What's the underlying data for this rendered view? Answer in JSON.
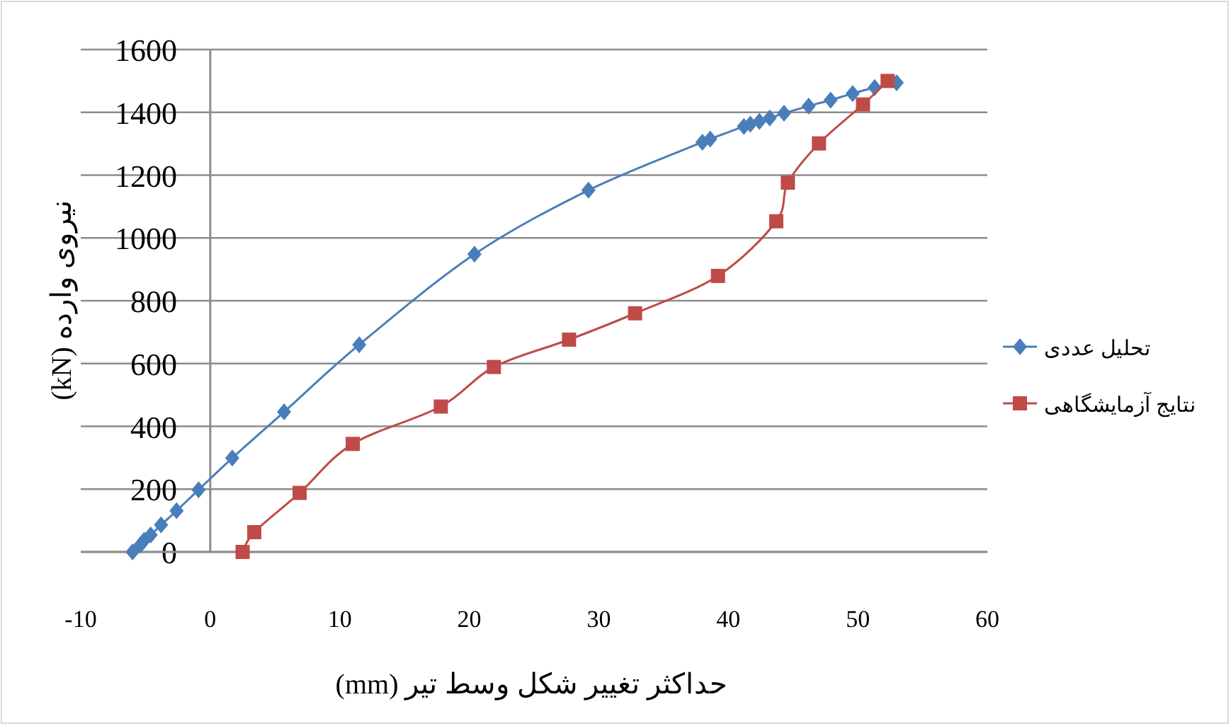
{
  "chart_data": {
    "type": "line",
    "xlabel": "حداکثر تغییر شکل وسط تیر (mm)",
    "ylabel": "نیروی وارده (kN)",
    "xlim": [
      -10,
      60
    ],
    "xticks": [
      -10,
      0,
      10,
      20,
      30,
      40,
      50,
      60
    ],
    "ylim": [
      0,
      1600
    ],
    "yticks": [
      0,
      200,
      400,
      600,
      800,
      1000,
      1200,
      1400,
      1600
    ],
    "grid": "y",
    "legend": "right",
    "line_style": "solid",
    "series": [
      {
        "name": "تحلیل عددی",
        "color": "#4a7ebb",
        "marker": "diamond",
        "x": [
          -6.0,
          -5.4,
          -5.1,
          -4.6,
          -3.8,
          -2.6,
          -0.9,
          1.7,
          5.7,
          11.5,
          20.4,
          29.2,
          38.0,
          38.6,
          41.2,
          41.7,
          42.4,
          43.2,
          44.3,
          46.2,
          47.9,
          49.6,
          51.3,
          53.0
        ],
        "values": [
          0,
          22,
          37,
          54,
          86,
          131,
          198,
          299,
          446,
          660,
          948,
          1152,
          1305,
          1315,
          1355,
          1362,
          1371,
          1382,
          1397,
          1420,
          1439,
          1460,
          1479,
          1494
        ]
      },
      {
        "name": "نتایج آزمایشگاهی",
        "color": "#be4b48",
        "marker": "square",
        "x": [
          2.5,
          3.4,
          6.9,
          11.0,
          17.8,
          21.9,
          27.7,
          32.8,
          39.2,
          43.7,
          44.6,
          47.0,
          50.4,
          52.3
        ],
        "values": [
          0,
          63,
          188,
          344,
          463,
          589,
          676,
          760,
          879,
          1053,
          1176,
          1301,
          1425,
          1500
        ]
      }
    ]
  }
}
